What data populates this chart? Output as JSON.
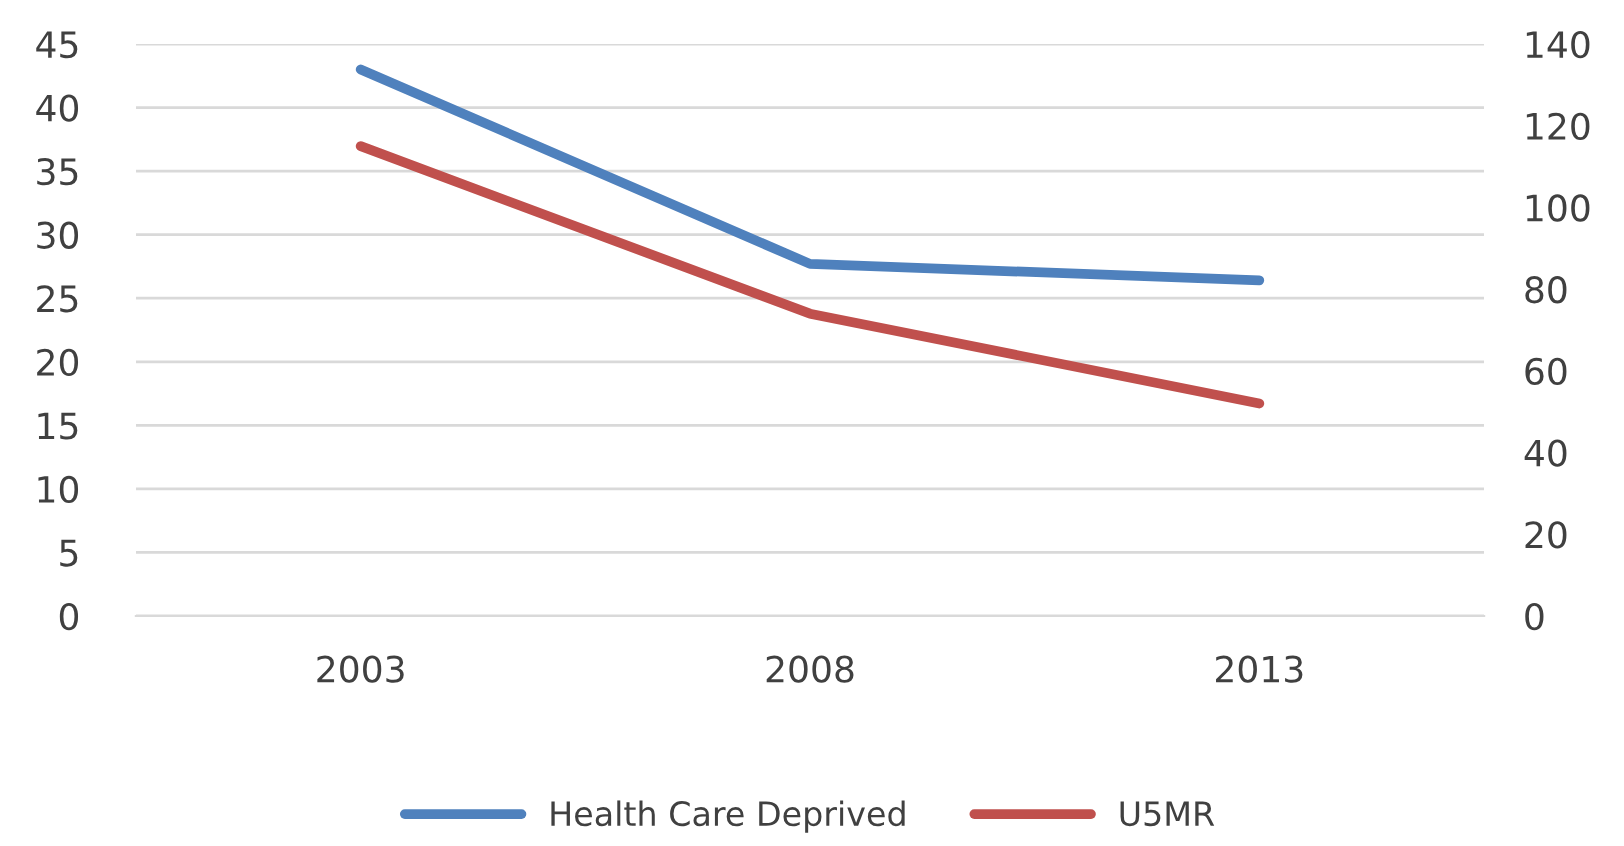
{
  "chart_data": {
    "type": "line",
    "categories": [
      "2003",
      "2008",
      "2013"
    ],
    "series": [
      {
        "name": "Health Care Deprived",
        "color": "#4f81bd",
        "values": [
          43,
          27.7,
          26.4
        ]
      },
      {
        "name": "U5MR",
        "color": "#c0504d",
        "values": [
          115,
          74,
          52
        ],
        "axis": "y2"
      }
    ],
    "ylim": [
      0,
      45
    ],
    "yticks": [
      0,
      5,
      10,
      15,
      20,
      25,
      30,
      35,
      40,
      45
    ],
    "y2lim": [
      0,
      140
    ],
    "y2ticks": [
      0,
      20,
      40,
      60,
      80,
      100,
      120,
      140
    ],
    "grid": "y",
    "legend": "bottom",
    "marker": "none",
    "line_style": "solid"
  }
}
